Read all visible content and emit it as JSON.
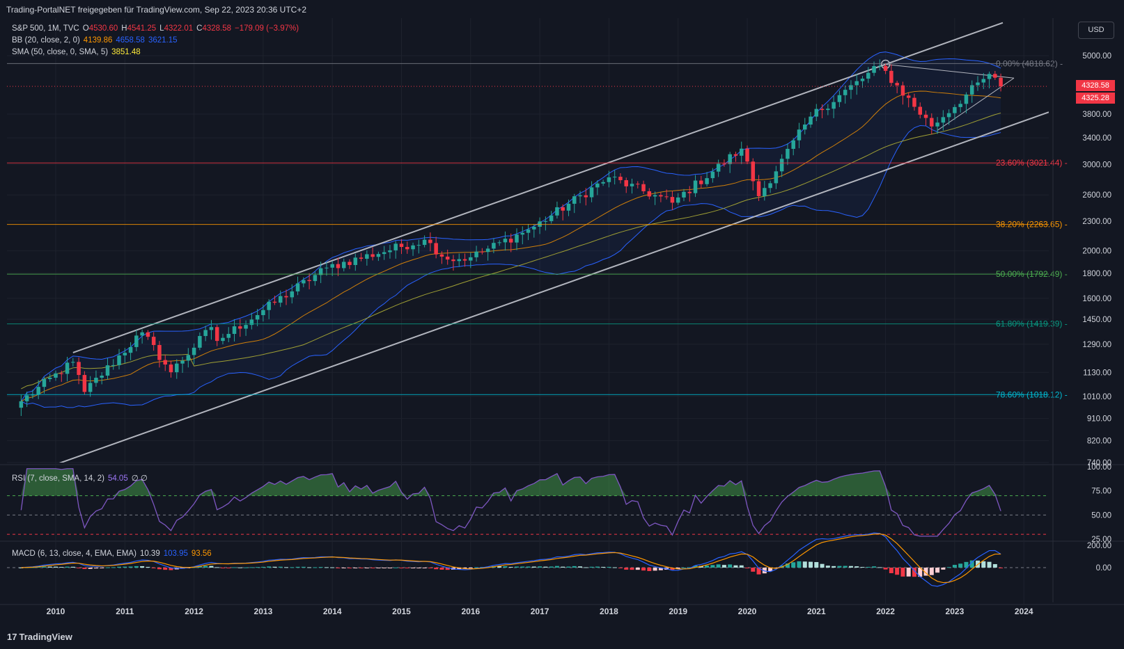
{
  "header": {
    "title": "Trading-PortalNET freigegeben für TradingView.com, Sep 22, 2023 20:36 UTC+2"
  },
  "legend": {
    "symbol": "S&P 500, 1M, TVC",
    "o_label": "O",
    "o_value": "4530.60",
    "h_label": "H",
    "h_value": "4541.25",
    "l_label": "L",
    "l_value": "4322.01",
    "c_label": "C",
    "c_value": "4328.58",
    "change": "−179.09 (−3.97%)",
    "bb_label": "BB (20, close, 2, 0)",
    "bb_basis": "4139.86",
    "bb_upper": "4658.58",
    "bb_lower": "3621.15",
    "sma_label": "SMA (50, close, 0, SMA, 5)",
    "sma_value": "3851.48"
  },
  "currency_button": "USD",
  "price_tags": {
    "last": "4328.58",
    "prev": "4325.28"
  },
  "rsi_legend": {
    "label": "RSI (7, close, SMA, 14, 2)",
    "value": "54.05",
    "extra": "∅ ∅"
  },
  "macd_legend": {
    "label": "MACD (6, 13, close, 4, EMA, EMA)",
    "hist": "10.39",
    "macd": "103.95",
    "signal": "93.56"
  },
  "footer": {
    "brand": "TradingView",
    "brand_mark": "17"
  },
  "colors": {
    "up": "#26a69a",
    "down": "#f23645",
    "bb_upper_lower": "#2962ff",
    "bb_basis": "#ff9800",
    "sma": "#a0a034",
    "rsi": "#7e57c2",
    "macd": "#2962ff",
    "signal": "#ff9800"
  },
  "chart_data": [
    {
      "type": "candlestick",
      "title": "S&P 500, 1M, TVC",
      "x_ticks": [
        "2010",
        "2011",
        "2012",
        "2013",
        "2014",
        "2015",
        "2016",
        "2017",
        "2018",
        "2019",
        "2020",
        "2021",
        "2022",
        "2023",
        "2024"
      ],
      "y_scale": "log",
      "y_ticks": [
        "740.00",
        "820.00",
        "910.00",
        "1010.00",
        "1130.00",
        "1290.00",
        "1450.00",
        "1600.00",
        "1800.00",
        "2000.00",
        "2300.00",
        "2600.00",
        "3000.00",
        "3400.00",
        "3800.00",
        "5000.00"
      ],
      "ylim": [
        720,
        5600
      ],
      "fibonacci": [
        {
          "label": "0.00% (4818.62)",
          "value": 4818.62,
          "color": "#787b86"
        },
        {
          "label": "23.60% (3021.44)",
          "value": 3021.44,
          "color": "#f23645"
        },
        {
          "label": "38.20% (2263.65)",
          "value": 2263.65,
          "color": "#ff9800"
        },
        {
          "label": "50.00% (1792.49)",
          "value": 1792.49,
          "color": "#4caf50"
        },
        {
          "label": "61.80% (1419.39)",
          "value": 1419.39,
          "color": "#089981"
        },
        {
          "label": "78.60% (1018.12)",
          "value": 1018.12,
          "color": "#00bcd4"
        }
      ],
      "monthly_close_anchors": [
        {
          "date": "2009-07",
          "close": 987
        },
        {
          "date": "2010-04",
          "close": 1187
        },
        {
          "date": "2010-06",
          "close": 1031
        },
        {
          "date": "2011-04",
          "close": 1364
        },
        {
          "date": "2011-09",
          "close": 1131
        },
        {
          "date": "2012-04",
          "close": 1398
        },
        {
          "date": "2012-05",
          "close": 1310
        },
        {
          "date": "2013-12",
          "close": 1848
        },
        {
          "date": "2015-05",
          "close": 2107
        },
        {
          "date": "2015-09",
          "close": 1920
        },
        {
          "date": "2016-01",
          "close": 1940
        },
        {
          "date": "2016-12",
          "close": 2239
        },
        {
          "date": "2018-01",
          "close": 2824
        },
        {
          "date": "2018-12",
          "close": 2507
        },
        {
          "date": "2019-12",
          "close": 3231
        },
        {
          "date": "2020-03",
          "close": 2585
        },
        {
          "date": "2020-12",
          "close": 3756
        },
        {
          "date": "2021-12",
          "close": 4766
        },
        {
          "date": "2022-09",
          "close": 3586
        },
        {
          "date": "2023-07",
          "close": 4589
        },
        {
          "date": "2023-08",
          "close": 4508
        },
        {
          "date": "2023-09",
          "close": 4328.58
        }
      ]
    },
    {
      "type": "line",
      "title": "RSI (7, close, SMA, 14, 2)",
      "y_ticks": [
        "25.00",
        "50.00",
        "75.00",
        "100.00"
      ],
      "ylim": [
        25,
        100
      ],
      "levels": [
        70,
        50,
        30
      ],
      "last_value": 54.05
    },
    {
      "type": "bar",
      "title": "MACD (6, 13, close, 4, EMA, EMA)",
      "y_ticks": [
        "0.00",
        "200.00"
      ],
      "series": [
        {
          "name": "MACD",
          "last": 103.95
        },
        {
          "name": "Signal",
          "last": 93.56
        },
        {
          "name": "Histogram",
          "last": 10.39
        }
      ]
    }
  ]
}
